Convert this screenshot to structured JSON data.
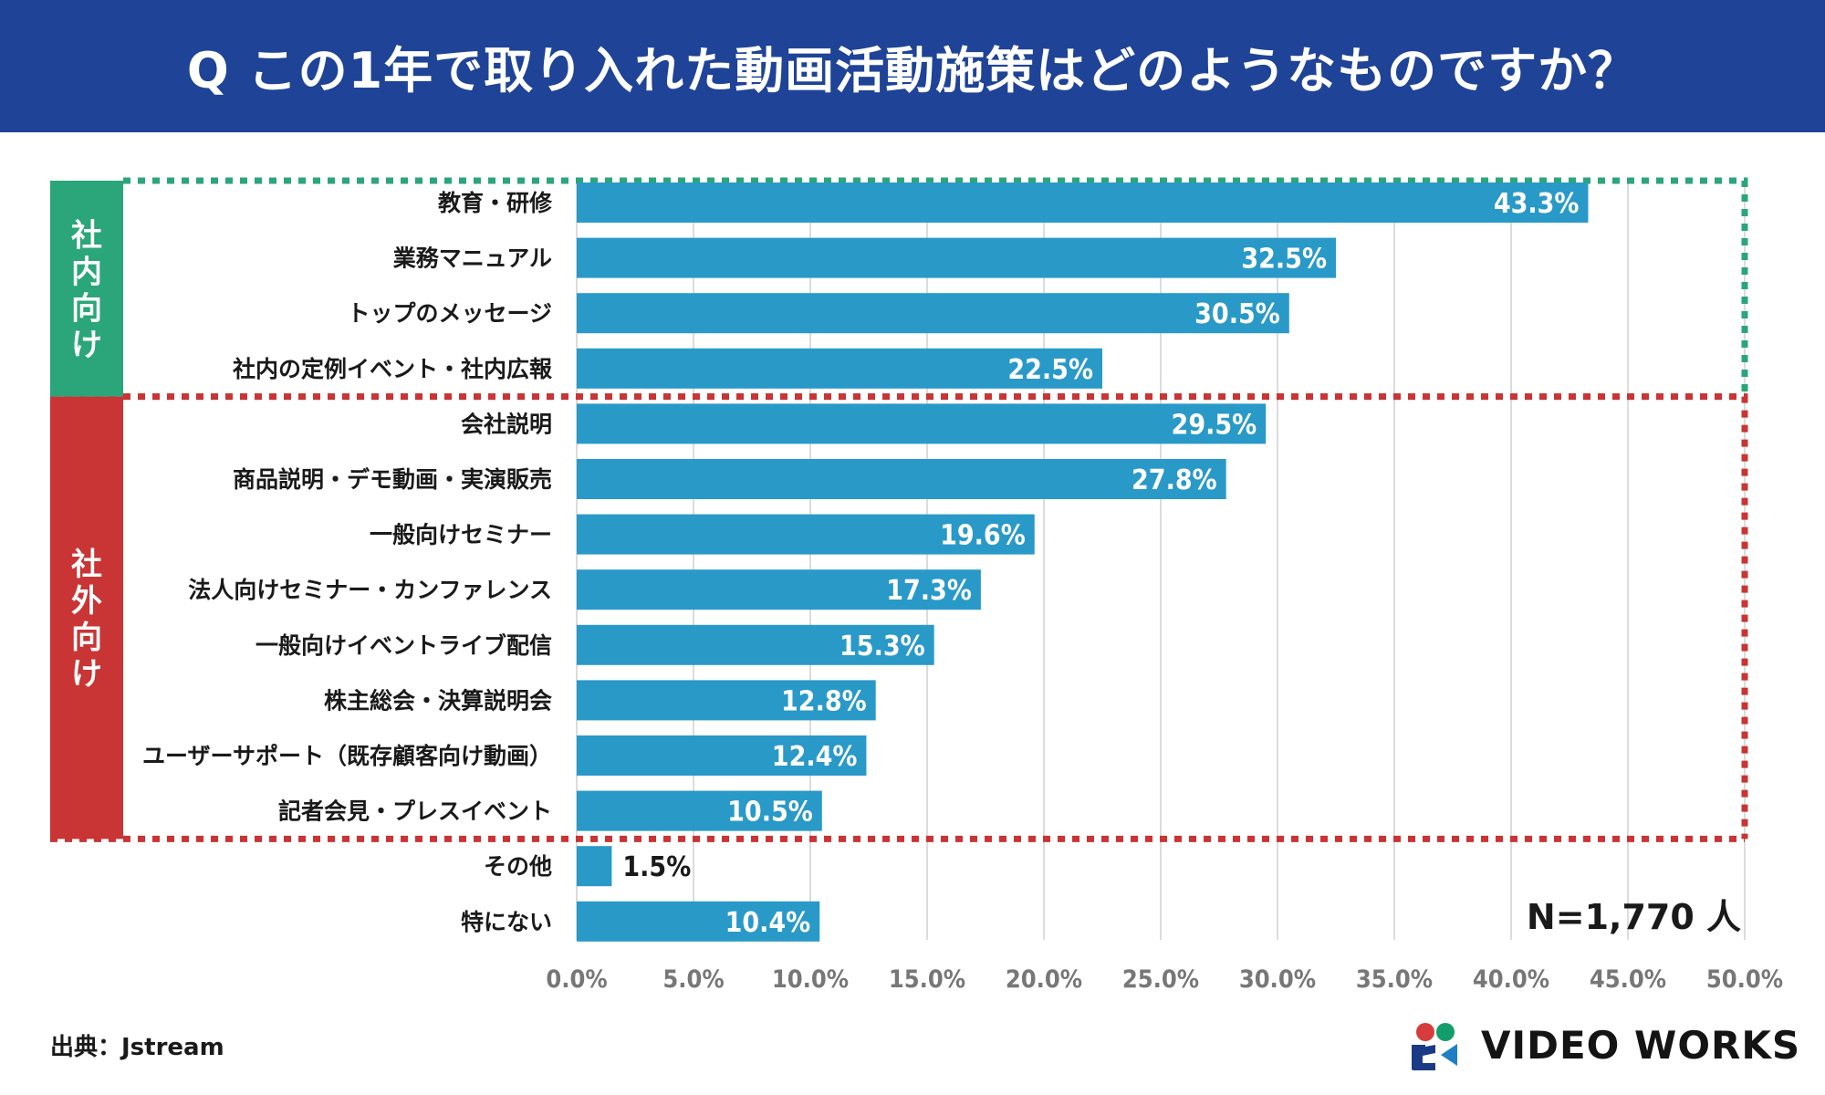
{
  "header": {
    "title": "Q この1年で取り入れた動画活動施策はどのようなものですか？"
  },
  "chart_data": {
    "type": "bar",
    "orientation": "horizontal",
    "title": "Q この1年で取り入れた動画活動施策はどのようなものですか？",
    "xlabel": "",
    "ylabel": "",
    "xlim": [
      0,
      50
    ],
    "xticks": [
      "0.0%",
      "5.0%",
      "10.0%",
      "15.0%",
      "20.0%",
      "25.0%",
      "30.0%",
      "35.0%",
      "40.0%",
      "45.0%",
      "50.0%"
    ],
    "grid": true,
    "unit": "%",
    "bar_color": "#2999c8",
    "categories": [
      "教育・研修",
      "業務マニュアル",
      "トップのメッセージ",
      "社内の定例イベント・社内広報",
      "会社説明",
      "商品説明・デモ動画・実演販売",
      "一般向けセミナー",
      "法人向けセミナー・カンファレンス",
      "一般向けイベントライブ配信",
      "株主総会・決算説明会",
      "ユーザーサポート（既存顧客向け動画）",
      "記者会見・プレスイベント",
      "その他",
      "特にない"
    ],
    "values": [
      43.3,
      32.5,
      30.5,
      22.5,
      29.5,
      27.8,
      19.6,
      17.3,
      15.3,
      12.8,
      12.4,
      10.5,
      1.5,
      10.4
    ],
    "value_labels": [
      "43.3%",
      "32.5%",
      "30.5%",
      "22.5%",
      "29.5%",
      "27.8%",
      "19.6%",
      "17.3%",
      "15.3%",
      "12.8%",
      "12.4%",
      "10.5%",
      "1.5%",
      "10.4%"
    ],
    "groups": [
      {
        "label": "社内向け",
        "chars": [
          "社",
          "内",
          "向",
          "け"
        ],
        "color": "#2ba57a",
        "first_index": 0,
        "last_index": 3
      },
      {
        "label": "社外向け",
        "chars": [
          "社",
          "外",
          "向",
          "け"
        ],
        "color": "#c93434",
        "first_index": 4,
        "last_index": 11
      }
    ],
    "sample_size_label": "N=1,770 人"
  },
  "footer": {
    "source": "出典：Jstream",
    "logo_text": "VIDEO WORKS"
  },
  "colors": {
    "header_bg": "#1e4397",
    "bar": "#2999c8",
    "internal_group": "#2ba57a",
    "external_group": "#c93434",
    "grid": "#dcdcdc",
    "tick_label": "#777777",
    "logo_red": "#d63c3c",
    "logo_green": "#129e6c",
    "logo_navy": "#1b3a86",
    "logo_blue": "#1f7fc4"
  }
}
